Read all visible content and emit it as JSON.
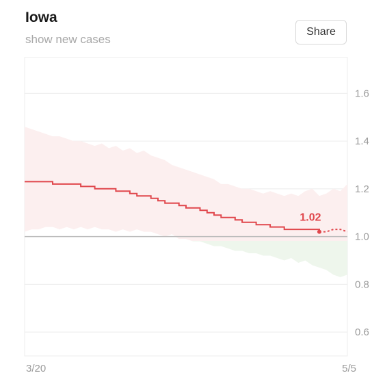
{
  "header": {
    "title": "Iowa",
    "subtitle": "show new cases",
    "share_label": "Share"
  },
  "colors": {
    "line": "#e0474c",
    "band_above": "#fcefef",
    "band_below": "#eef6ec",
    "baseline": "#bdbdbd",
    "grid": "#ececec"
  },
  "chart_data": {
    "type": "line",
    "title": "Iowa",
    "subtitle": "show new cases",
    "x_labels": [
      "3/20",
      "5/5"
    ],
    "ylim": [
      0.5,
      1.75
    ],
    "y_ticks": [
      0.6,
      0.8,
      1.0,
      1.2,
      1.4,
      1.6
    ],
    "y_tick_labels": [
      "0.6",
      "0.8",
      "1.0",
      "1.2",
      "1.4",
      "1.6"
    ],
    "reference_line": 1.0,
    "grid": true,
    "num_days": 47,
    "series": [
      {
        "values": [
          1.23,
          1.23,
          1.23,
          1.23,
          1.22,
          1.22,
          1.22,
          1.22,
          1.21,
          1.21,
          1.2,
          1.2,
          1.2,
          1.19,
          1.19,
          1.18,
          1.17,
          1.17,
          1.16,
          1.15,
          1.14,
          1.14,
          1.13,
          1.12,
          1.12,
          1.11,
          1.1,
          1.09,
          1.08,
          1.08,
          1.07,
          1.06,
          1.06,
          1.05,
          1.05,
          1.04,
          1.04,
          1.03,
          1.03,
          1.03,
          1.03,
          1.03,
          1.02
        ],
        "projection": [
          1.02,
          1.02,
          1.03,
          1.03,
          1.02
        ]
      }
    ],
    "band_upper": [
      1.46,
      1.45,
      1.44,
      1.43,
      1.42,
      1.42,
      1.41,
      1.4,
      1.4,
      1.39,
      1.38,
      1.39,
      1.37,
      1.38,
      1.36,
      1.37,
      1.35,
      1.36,
      1.34,
      1.33,
      1.32,
      1.3,
      1.29,
      1.28,
      1.27,
      1.26,
      1.25,
      1.24,
      1.22,
      1.22,
      1.21,
      1.2,
      1.2,
      1.19,
      1.18,
      1.19,
      1.18,
      1.17,
      1.18,
      1.17,
      1.19,
      1.2,
      1.17,
      1.18,
      1.2,
      1.19,
      1.22,
      1.21
    ],
    "band_lower": [
      1.02,
      1.03,
      1.03,
      1.04,
      1.04,
      1.03,
      1.04,
      1.03,
      1.04,
      1.03,
      1.04,
      1.03,
      1.03,
      1.02,
      1.03,
      1.02,
      1.03,
      1.02,
      1.02,
      1.01,
      1.0,
      1.01,
      0.99,
      0.99,
      0.98,
      0.98,
      0.97,
      0.96,
      0.96,
      0.95,
      0.94,
      0.94,
      0.93,
      0.93,
      0.92,
      0.92,
      0.91,
      0.9,
      0.91,
      0.89,
      0.9,
      0.88,
      0.87,
      0.86,
      0.84,
      0.83,
      0.84,
      0.83
    ]
  }
}
